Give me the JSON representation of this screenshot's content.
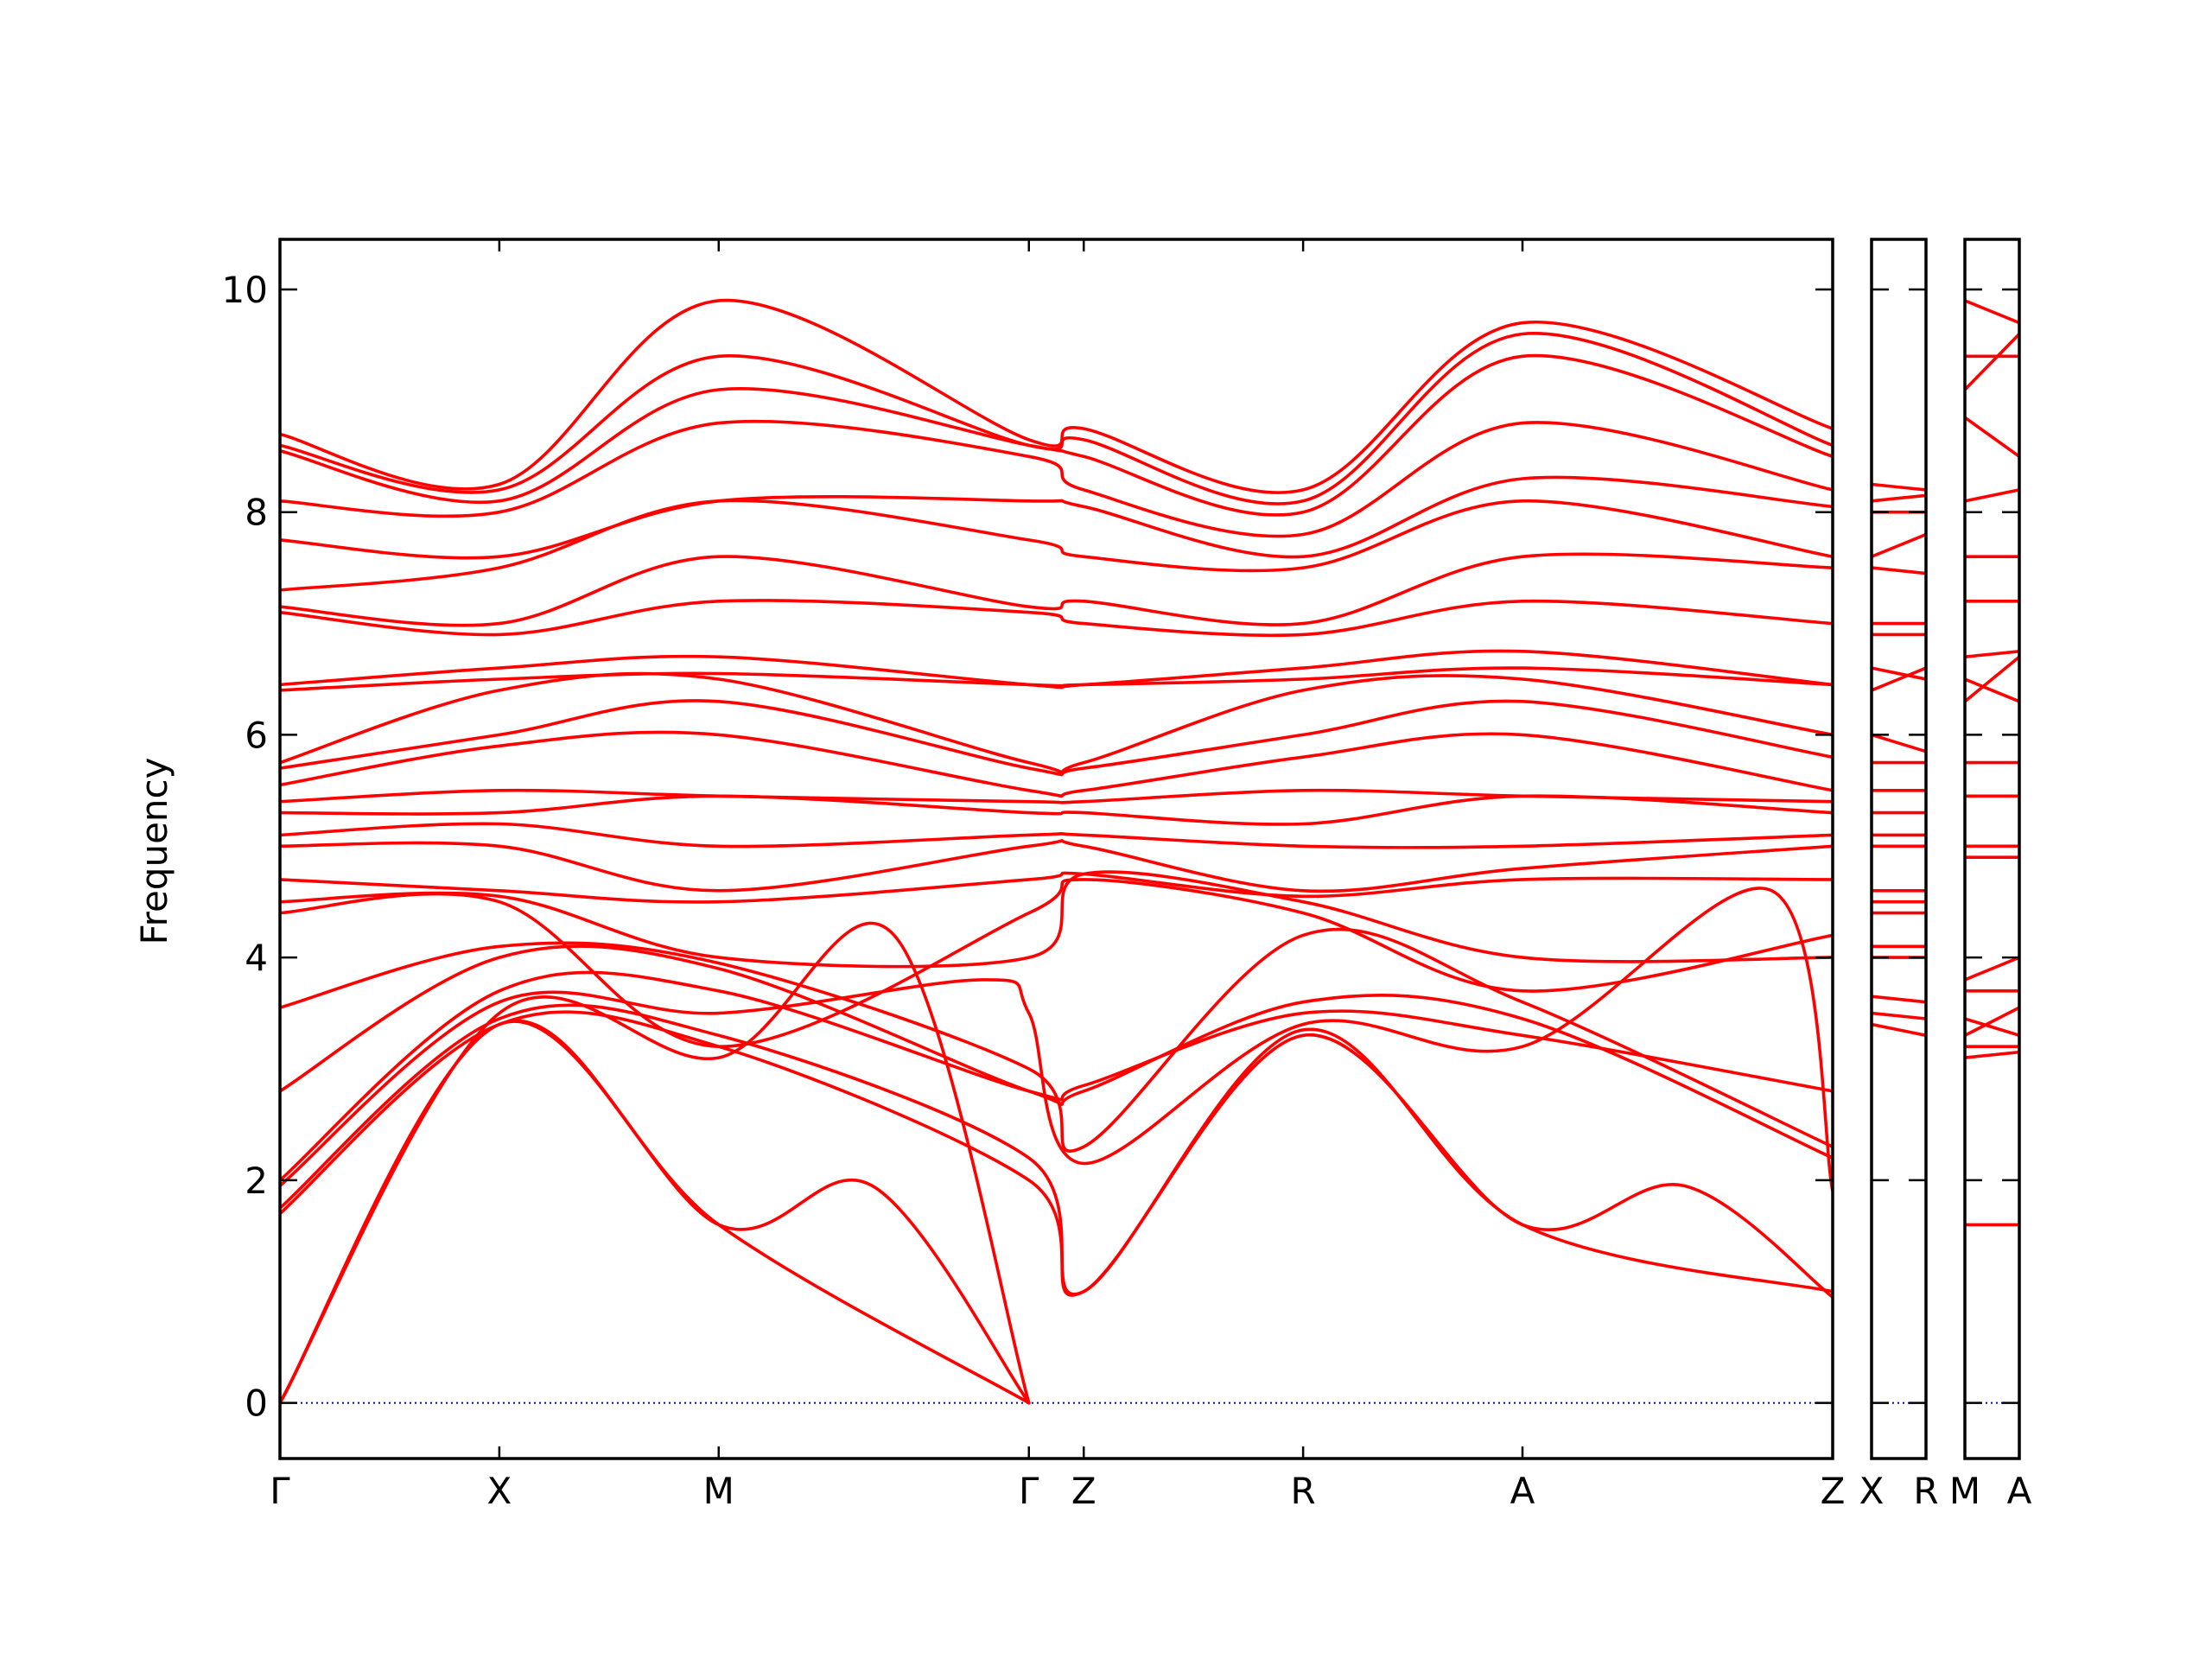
{
  "chart_data": {
    "type": "line",
    "ylabel": "Frequency",
    "ylim": [
      -0.5,
      10.45
    ],
    "yticks": [
      0,
      2,
      4,
      6,
      8,
      10
    ],
    "ytick_labels": [
      "0",
      "2",
      "4",
      "6",
      "8",
      "10"
    ],
    "band_color": "#ff0000",
    "zero_line_color": "#0000cc",
    "panels": [
      {
        "path_labels": [
          "Γ",
          "X",
          "M",
          "Γ",
          "Z",
          "R",
          "A",
          "Z"
        ],
        "path_positions": [
          0,
          1,
          2,
          3.414,
          3.664,
          4.664,
          5.664,
          7.078
        ],
        "bands": [
          {
            "x": [
              0,
              1,
              2,
              2.7,
              3.414
            ],
            "y": [
              0,
              3.4,
              1.6,
              1.95,
              0
            ]
          },
          {
            "x": [
              0,
              1,
              2,
              3.414
            ],
            "y": [
              0,
              3.4,
              1.6,
              0
            ]
          },
          {
            "x": [
              0,
              1,
              2,
              2.8,
              3.414
            ],
            "y": [
              0,
              3.5,
              3.1,
              4.2,
              0
            ]
          },
          {
            "x": [
              0,
              1,
              2,
              3.414,
              3.664,
              4.664,
              5.664,
              6.4,
              7.078
            ],
            "y": [
              1.7,
              3.4,
              3.2,
              2.0,
              1.0,
              3.3,
              1.6,
              1.95,
              0.95
            ]
          },
          {
            "x": [
              0,
              1,
              2,
              3.414,
              3.664,
              4.664,
              5.664,
              7.078
            ],
            "y": [
              1.75,
              3.45,
              3.3,
              2.2,
              1.0,
              3.35,
              1.6,
              1.0
            ]
          },
          {
            "x": [
              0,
              1,
              2,
              3.2,
              3.414,
              3.664,
              4.664,
              5.664,
              6.8,
              7.078
            ],
            "y": [
              1.95,
              3.6,
              3.5,
              3.8,
              3.5,
              2.15,
              3.4,
              3.2,
              4.6,
              1.9
            ]
          },
          {
            "x": [
              0,
              1,
              2,
              3.414,
              3.664,
              4.664,
              5.664,
              7.078
            ],
            "y": [
              2.0,
              3.7,
              3.7,
              2.8,
              2.85,
              3.5,
              3.3,
              2.8
            ]
          },
          {
            "x": [
              0,
              1,
              2,
              3.414,
              3.664,
              4.664,
              5.664,
              7.078
            ],
            "y": [
              2.8,
              4.0,
              3.9,
              2.8,
              2.8,
              3.6,
              3.45,
              2.2
            ]
          },
          {
            "x": [
              0,
              1,
              2,
              3.414,
              3.664,
              4.664,
              5.664,
              7.078
            ],
            "y": [
              3.55,
              4.1,
              3.95,
              3.0,
              2.3,
              4.2,
              3.6,
              2.3
            ]
          },
          {
            "x": [
              0,
              1,
              2,
              3.414,
              3.664,
              4.664,
              5.664,
              7.078
            ],
            "y": [
              4.4,
              4.5,
              3.2,
              4.4,
              4.7,
              4.4,
              3.7,
              4.2
            ]
          },
          {
            "x": [
              0,
              1,
              2,
              3.414,
              3.664,
              4.664,
              5.664,
              7.078
            ],
            "y": [
              4.5,
              4.55,
              4.0,
              4.0,
              4.75,
              4.5,
              4.0,
              4.0
            ]
          },
          {
            "x": [
              0,
              1,
              2,
              3.414,
              3.664,
              4.664,
              5.664,
              7.078
            ],
            "y": [
              4.7,
              4.6,
              4.5,
              4.7,
              4.75,
              4.55,
              4.7,
              4.7
            ]
          },
          {
            "x": [
              0,
              1,
              2,
              3.414,
              3.664,
              4.664,
              5.664,
              7.078
            ],
            "y": [
              5.0,
              5.0,
              4.6,
              5.0,
              5.0,
              4.6,
              4.8,
              5.0
            ]
          },
          {
            "x": [
              0,
              1,
              2,
              3.414,
              3.664,
              4.664,
              5.664,
              7.078
            ],
            "y": [
              5.1,
              5.2,
              5.0,
              5.1,
              5.1,
              5.0,
              5.0,
              5.1
            ]
          },
          {
            "x": [
              0,
              1,
              2,
              3.414,
              3.664,
              4.664,
              5.664,
              7.078
            ],
            "y": [
              5.3,
              5.3,
              5.45,
              5.3,
              5.3,
              5.2,
              5.45,
              5.3
            ]
          },
          {
            "x": [
              0,
              1,
              2,
              3.414,
              3.664,
              4.664,
              5.664,
              7.078
            ],
            "y": [
              5.4,
              5.5,
              5.45,
              5.4,
              5.4,
              5.5,
              5.45,
              5.4
            ]
          },
          {
            "x": [
              0,
              1,
              2,
              3.414,
              3.664,
              4.664,
              5.664,
              7.078
            ],
            "y": [
              5.55,
              5.9,
              6.0,
              5.5,
              5.5,
              5.8,
              6.0,
              5.5
            ]
          },
          {
            "x": [
              0,
              1,
              2,
              3.414,
              3.664,
              4.664,
              5.664,
              7.078
            ],
            "y": [
              5.7,
              6.0,
              6.3,
              5.7,
              5.7,
              6.0,
              6.3,
              5.8
            ]
          },
          {
            "x": [
              0,
              1,
              2,
              3.414,
              3.664,
              4.664,
              5.664,
              7.078
            ],
            "y": [
              5.75,
              6.4,
              6.5,
              5.75,
              5.75,
              6.4,
              6.5,
              6.0
            ]
          },
          {
            "x": [
              0,
              1,
              2,
              3.414,
              3.664,
              4.664,
              5.664,
              7.078
            ],
            "y": [
              6.4,
              6.5,
              6.55,
              6.45,
              6.45,
              6.5,
              6.6,
              6.45
            ]
          },
          {
            "x": [
              0,
              1,
              2,
              3.414,
              3.664,
              4.664,
              5.664,
              7.078
            ],
            "y": [
              6.45,
              6.6,
              6.7,
              6.45,
              6.45,
              6.6,
              6.75,
              6.45
            ]
          },
          {
            "x": [
              0,
              1,
              2,
              3.414,
              3.664,
              4.664,
              5.664,
              7.078
            ],
            "y": [
              7.1,
              6.9,
              7.2,
              7.1,
              7.0,
              6.9,
              7.2,
              7.0
            ]
          },
          {
            "x": [
              0,
              1,
              2,
              3.414,
              3.664,
              4.664,
              5.664,
              7.078
            ],
            "y": [
              7.15,
              7.0,
              7.6,
              7.15,
              7.2,
              7.0,
              7.6,
              7.5
            ]
          },
          {
            "x": [
              0,
              1,
              2,
              3.414,
              3.664,
              4.664,
              5.664,
              7.078
            ],
            "y": [
              7.3,
              7.5,
              8.1,
              7.75,
              7.6,
              7.5,
              8.1,
              7.6
            ]
          },
          {
            "x": [
              0,
              1,
              2,
              3.414,
              3.664,
              4.664,
              5.664,
              7.078
            ],
            "y": [
              7.75,
              7.6,
              8.1,
              8.1,
              8.05,
              7.6,
              8.3,
              8.05
            ]
          },
          {
            "x": [
              0,
              1,
              2,
              3.414,
              3.664,
              4.664,
              5.664,
              7.078
            ],
            "y": [
              8.1,
              8.0,
              8.8,
              8.5,
              8.2,
              7.8,
              8.8,
              8.2
            ]
          },
          {
            "x": [
              0,
              1,
              2,
              3.414,
              3.664,
              4.664,
              5.664,
              7.078
            ],
            "y": [
              8.55,
              8.1,
              9.1,
              8.6,
              8.5,
              8.0,
              9.4,
              8.5
            ]
          },
          {
            "x": [
              0,
              1,
              2,
              3.414,
              3.664,
              4.664,
              5.664,
              7.078
            ],
            "y": [
              8.6,
              8.2,
              9.4,
              8.6,
              8.65,
              8.1,
              9.6,
              8.6
            ]
          },
          {
            "x": [
              0,
              1,
              2,
              3.414,
              3.664,
              4.664,
              5.664,
              7.078
            ],
            "y": [
              8.7,
              8.25,
              9.9,
              8.65,
              8.75,
              8.2,
              9.7,
              8.75
            ]
          }
        ]
      },
      {
        "path_labels": [
          "X",
          "R"
        ],
        "path_positions": [
          0,
          1
        ],
        "bands": [
          {
            "x": [
              0,
              1
            ],
            "y": [
              3.4,
              3.3
            ]
          },
          {
            "x": [
              0,
              1
            ],
            "y": [
              3.5,
              3.45
            ]
          },
          {
            "x": [
              0,
              1
            ],
            "y": [
              3.65,
              3.6
            ]
          },
          {
            "x": [
              0,
              1
            ],
            "y": [
              4.0,
              4.0
            ]
          },
          {
            "x": [
              0,
              1
            ],
            "y": [
              4.1,
              4.1
            ]
          },
          {
            "x": [
              0,
              1
            ],
            "y": [
              4.4,
              4.4
            ]
          },
          {
            "x": [
              0,
              1
            ],
            "y": [
              4.5,
              4.5
            ]
          },
          {
            "x": [
              0,
              1
            ],
            "y": [
              4.6,
              4.6
            ]
          },
          {
            "x": [
              0,
              1
            ],
            "y": [
              5.0,
              5.0
            ]
          },
          {
            "x": [
              0,
              1
            ],
            "y": [
              5.1,
              5.1
            ]
          },
          {
            "x": [
              0,
              1
            ],
            "y": [
              5.3,
              5.3
            ]
          },
          {
            "x": [
              0,
              1
            ],
            "y": [
              5.5,
              5.5
            ]
          },
          {
            "x": [
              0,
              1
            ],
            "y": [
              5.75,
              5.75
            ]
          },
          {
            "x": [
              0,
              1
            ],
            "y": [
              6.0,
              5.85
            ]
          },
          {
            "x": [
              0,
              1
            ],
            "y": [
              6.4,
              6.6
            ]
          },
          {
            "x": [
              0,
              1
            ],
            "y": [
              6.6,
              6.5
            ]
          },
          {
            "x": [
              0,
              1
            ],
            "y": [
              6.9,
              6.9
            ]
          },
          {
            "x": [
              0,
              1
            ],
            "y": [
              7.0,
              7.0
            ]
          },
          {
            "x": [
              0,
              1
            ],
            "y": [
              7.5,
              7.45
            ]
          },
          {
            "x": [
              0,
              1
            ],
            "y": [
              7.6,
              7.8
            ]
          },
          {
            "x": [
              0,
              1
            ],
            "y": [
              8.0,
              8.0
            ]
          },
          {
            "x": [
              0,
              1
            ],
            "y": [
              8.1,
              8.15
            ]
          },
          {
            "x": [
              0,
              1
            ],
            "y": [
              8.25,
              8.2
            ]
          }
        ]
      },
      {
        "path_labels": [
          "M",
          "A"
        ],
        "path_positions": [
          0,
          1
        ],
        "bands": [
          {
            "x": [
              0,
              1
            ],
            "y": [
              1.6,
              1.6
            ]
          },
          {
            "x": [
              0,
              1
            ],
            "y": [
              3.1,
              3.15
            ]
          },
          {
            "x": [
              0,
              1
            ],
            "y": [
              3.2,
              3.2
            ]
          },
          {
            "x": [
              0,
              1
            ],
            "y": [
              3.3,
              3.55
            ]
          },
          {
            "x": [
              0,
              1
            ],
            "y": [
              3.45,
              3.3
            ]
          },
          {
            "x": [
              0,
              1
            ],
            "y": [
              3.7,
              3.7
            ]
          },
          {
            "x": [
              0,
              1
            ],
            "y": [
              3.8,
              4.0
            ]
          },
          {
            "x": [
              0,
              1
            ],
            "y": [
              4.9,
              4.9
            ]
          },
          {
            "x": [
              0,
              1
            ],
            "y": [
              5.0,
              5.0
            ]
          },
          {
            "x": [
              0,
              1
            ],
            "y": [
              5.45,
              5.45
            ]
          },
          {
            "x": [
              0,
              1
            ],
            "y": [
              5.75,
              5.75
            ]
          },
          {
            "x": [
              0,
              1
            ],
            "y": [
              6.3,
              6.7
            ]
          },
          {
            "x": [
              0,
              1
            ],
            "y": [
              6.5,
              6.3
            ]
          },
          {
            "x": [
              0,
              1
            ],
            "y": [
              6.7,
              6.75
            ]
          },
          {
            "x": [
              0,
              1
            ],
            "y": [
              7.2,
              7.2
            ]
          },
          {
            "x": [
              0,
              1
            ],
            "y": [
              7.6,
              7.6
            ]
          },
          {
            "x": [
              0,
              1
            ],
            "y": [
              8.1,
              8.2
            ]
          },
          {
            "x": [
              0,
              1
            ],
            "y": [
              8.85,
              8.5
            ]
          },
          {
            "x": [
              0,
              1
            ],
            "y": [
              9.1,
              9.6
            ]
          },
          {
            "x": [
              0,
              1
            ],
            "y": [
              9.4,
              9.4
            ]
          },
          {
            "x": [
              0,
              1
            ],
            "y": [
              9.9,
              9.7
            ]
          }
        ]
      }
    ]
  }
}
